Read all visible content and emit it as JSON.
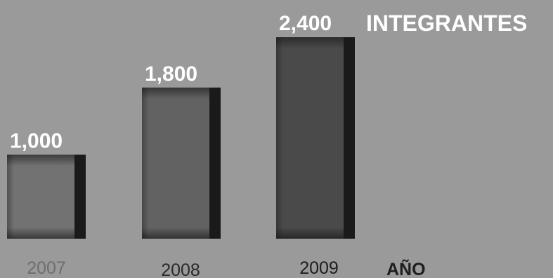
{
  "chart_data": {
    "type": "bar",
    "categories": [
      "2007",
      "2008",
      "2009"
    ],
    "values": [
      1000,
      1800,
      2400
    ],
    "value_labels": [
      "1,000",
      "1,800",
      "2,400"
    ],
    "ylabel": "INTEGRANTES",
    "xlabel": "AÑO",
    "ylim": [
      0,
      2400
    ],
    "grid": false,
    "legend": "none"
  },
  "colors": {
    "background": "#9a9a9a",
    "bars": [
      "#727272",
      "#626262",
      "#4a4a4a"
    ],
    "bar_shadow": "#1a1a1a",
    "value_label": "#ffffff",
    "category_labels": [
      "#6e6e6e",
      "#2a2a2a",
      "#1e1e1e"
    ]
  }
}
